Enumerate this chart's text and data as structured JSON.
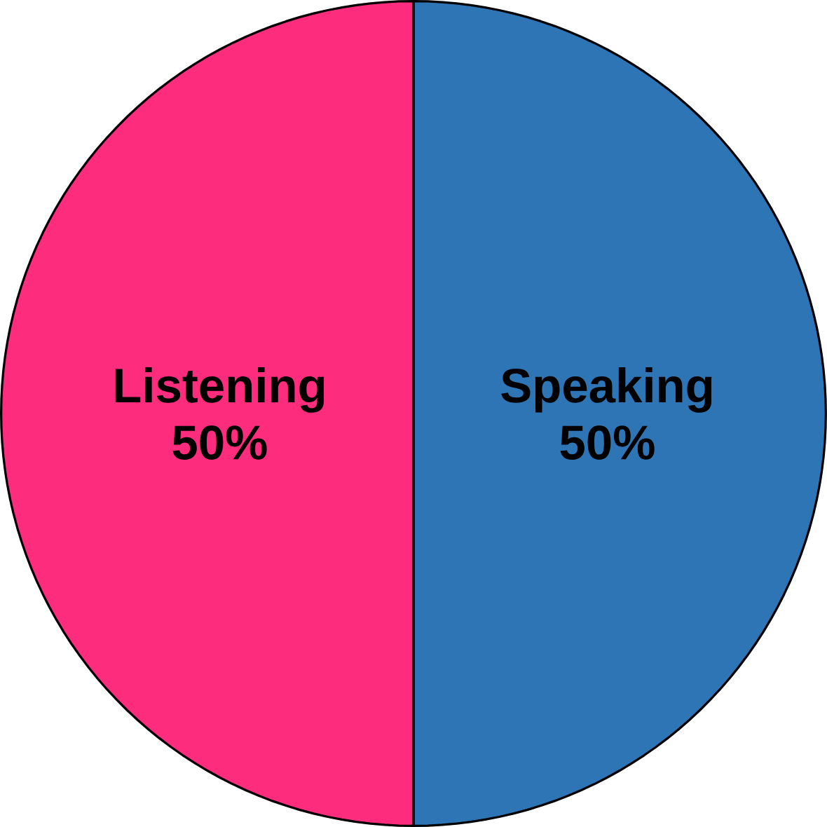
{
  "chart_data": {
    "type": "pie",
    "categories": [
      "Speaking",
      "Listening"
    ],
    "values": [
      50,
      50
    ],
    "value_labels": [
      "50%",
      "50%"
    ],
    "colors": [
      "#2e75b6",
      "#fe2c7c"
    ]
  }
}
